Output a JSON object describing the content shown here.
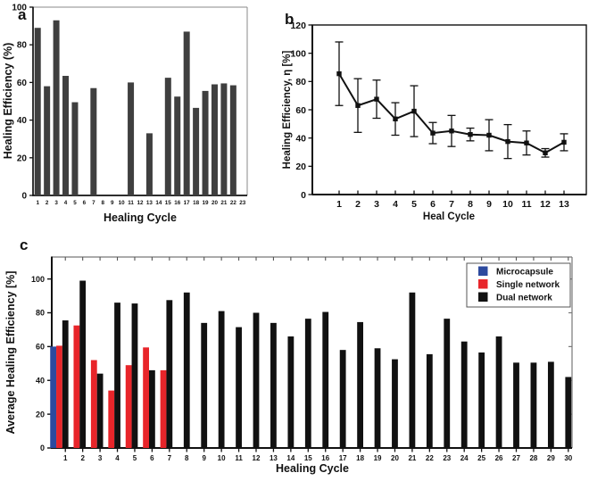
{
  "panels": {
    "a": {
      "label": "a"
    },
    "b": {
      "label": "b"
    },
    "c": {
      "label": "c"
    }
  },
  "chart_data": [
    {
      "id": "a",
      "type": "bar",
      "xlabel": "Healing Cycle",
      "ylabel": "Healing Efficiency (%)",
      "categories": [
        1,
        2,
        3,
        4,
        5,
        6,
        7,
        8,
        9,
        10,
        11,
        12,
        13,
        14,
        15,
        16,
        17,
        18,
        19,
        20,
        21,
        22,
        23
      ],
      "values": [
        89,
        58,
        93,
        63.5,
        49.5,
        0,
        57,
        0,
        0,
        0,
        60,
        0,
        33,
        0,
        62.5,
        52.5,
        87,
        46.5,
        55.5,
        59,
        59.5,
        58.5,
        0
      ],
      "ylim": [
        0,
        100
      ],
      "yticks": [
        0,
        20,
        40,
        60,
        80,
        100
      ],
      "bar_color": "#3f3f3f",
      "grid": false,
      "legend": null
    },
    {
      "id": "b",
      "type": "line",
      "xlabel": "Heal Cycle",
      "ylabel": "Healing Efficiency, η [%]",
      "x": [
        1,
        2,
        3,
        4,
        5,
        6,
        7,
        8,
        9,
        10,
        11,
        12,
        13
      ],
      "y": [
        85.5,
        63,
        67.5,
        53.5,
        59,
        43.5,
        45,
        42.5,
        42,
        37.5,
        36.5,
        29.5,
        37
      ],
      "yerr": [
        22.5,
        19,
        13.5,
        11.5,
        18,
        7.5,
        11,
        4.5,
        11,
        12,
        8.5,
        3,
        6
      ],
      "ylim": [
        0,
        120
      ],
      "yticks": [
        0,
        20,
        40,
        60,
        80,
        100,
        120
      ],
      "line_color": "#111111",
      "marker": "square",
      "grid": false,
      "legend": null
    },
    {
      "id": "c",
      "type": "bar",
      "xlabel": "Healing Cycle",
      "ylabel": "Average Healing Efficiency [%]",
      "categories": [
        1,
        2,
        3,
        4,
        5,
        6,
        7,
        8,
        9,
        10,
        11,
        12,
        13,
        14,
        15,
        16,
        17,
        18,
        19,
        20,
        21,
        22,
        23,
        24,
        25,
        26,
        27,
        28,
        29,
        30
      ],
      "series": [
        {
          "name": "Microcapsule",
          "color": "#2d4a9e",
          "values": [
            60,
            null,
            null,
            null,
            null,
            null,
            null,
            null,
            null,
            null,
            null,
            null,
            null,
            null,
            null,
            null,
            null,
            null,
            null,
            null,
            null,
            null,
            null,
            null,
            null,
            null,
            null,
            null,
            null,
            null
          ]
        },
        {
          "name": "Single network",
          "color": "#e8252a",
          "values": [
            60.5,
            72.5,
            52,
            34,
            49,
            59.5,
            46,
            null,
            null,
            null,
            null,
            null,
            null,
            null,
            null,
            null,
            null,
            null,
            null,
            null,
            null,
            null,
            null,
            null,
            null,
            null,
            null,
            null,
            null,
            null
          ]
        },
        {
          "name": "Dual network",
          "color": "#111111",
          "values": [
            75.5,
            99,
            44,
            86,
            85.5,
            46,
            87.5,
            92,
            74,
            81,
            71.5,
            80,
            74,
            66,
            76.5,
            80.5,
            58,
            74.5,
            59,
            52.5,
            92,
            55.5,
            76.5,
            63,
            56.5,
            66,
            50.5,
            50.5,
            51,
            42
          ]
        }
      ],
      "ylim": [
        0,
        113
      ],
      "yticks": [
        0,
        20,
        40,
        60,
        80,
        100
      ],
      "grid": false,
      "legend": {
        "position": "top-right",
        "entries": [
          "Microcapsule",
          "Single network",
          "Dual network"
        ]
      }
    }
  ]
}
